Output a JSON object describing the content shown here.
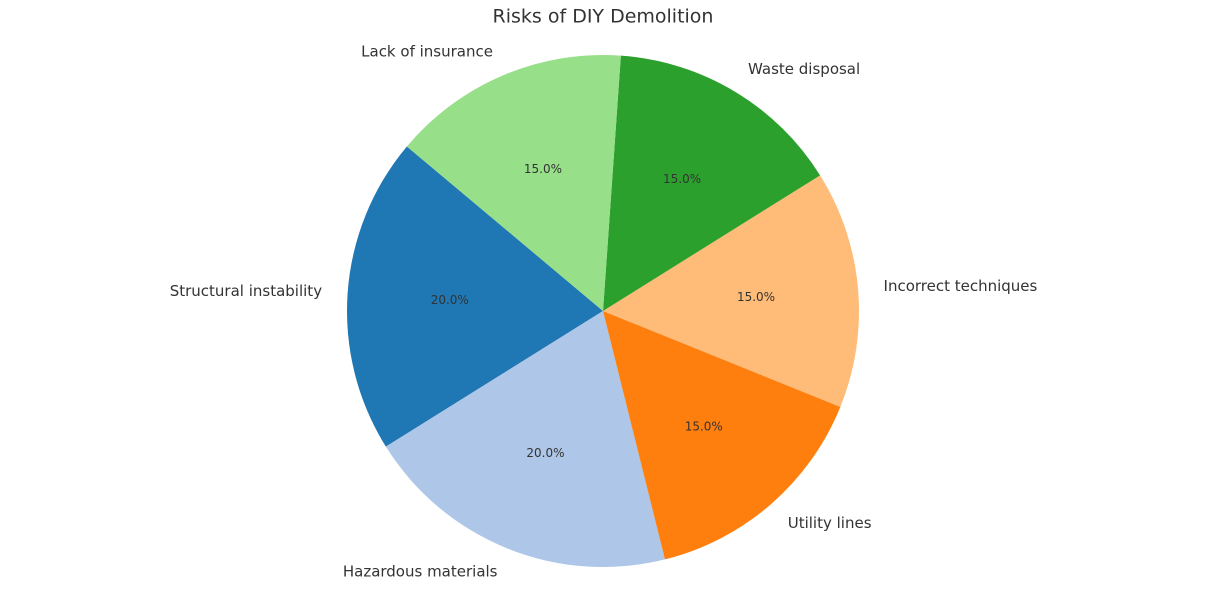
{
  "chart_data": {
    "type": "pie",
    "title": "Risks of DIY Demolition",
    "categories": [
      "Structural instability",
      "Hazardous materials",
      "Utility lines",
      "Incorrect techniques",
      "Waste disposal",
      "Lack of insurance"
    ],
    "values": [
      20,
      20,
      15,
      15,
      15,
      15
    ],
    "value_labels": [
      "20.0%",
      "20.0%",
      "15.0%",
      "15.0%",
      "15.0%",
      "15.0%"
    ],
    "colors": [
      "#1f77b4",
      "#aec7e8",
      "#ff7f0e",
      "#ffbb78",
      "#2ca02c",
      "#98df8a"
    ]
  }
}
